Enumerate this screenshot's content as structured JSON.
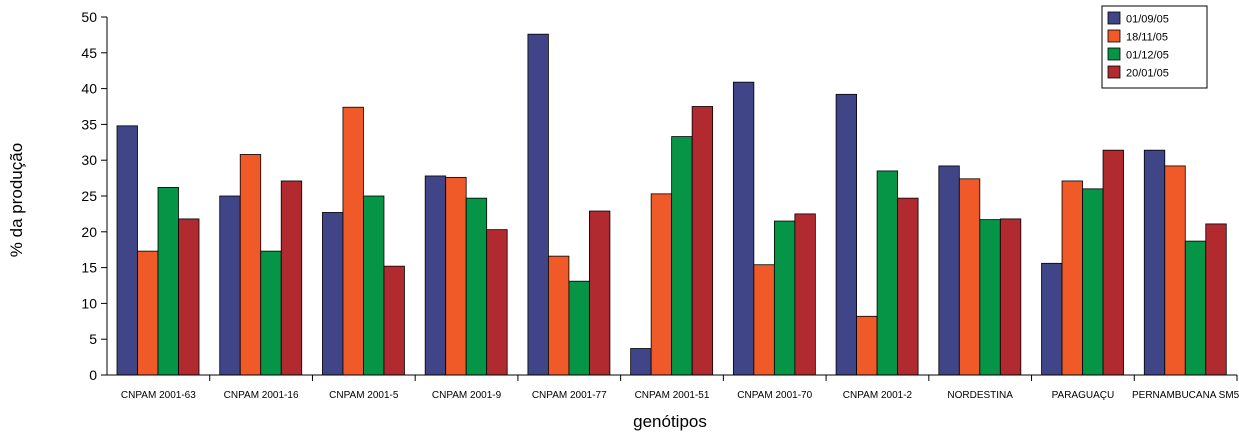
{
  "chart_data": {
    "type": "bar",
    "title": "",
    "xlabel": "genótipos",
    "ylabel": "% da produção",
    "ylim": [
      0,
      50
    ],
    "yticks": [
      0,
      5,
      10,
      15,
      20,
      25,
      30,
      35,
      40,
      45,
      50
    ],
    "grid": false,
    "legend_position": "top-right",
    "categories": [
      "CNPAM 2001-63",
      "CNPAM 2001-16",
      "CNPAM 2001-5",
      "CNPAM 2001-9",
      "CNPAM 2001-77",
      "CNPAM 2001-51",
      "CNPAM 2001-70",
      "CNPAM 2001-2",
      "NORDESTINA",
      "PARAGUAÇU",
      "PERNAMBUCANA SM5"
    ],
    "series": [
      {
        "name": "01/09/05",
        "color": "#3f4587",
        "values": [
          34.8,
          25.0,
          22.7,
          27.8,
          47.6,
          3.7,
          40.9,
          39.2,
          29.2,
          15.6,
          31.4
        ]
      },
      {
        "name": "18/11/05",
        "color": "#f05a28",
        "values": [
          17.3,
          30.8,
          37.4,
          27.6,
          16.6,
          25.3,
          15.4,
          8.2,
          27.4,
          27.1,
          29.2
        ]
      },
      {
        "name": "01/12/05",
        "color": "#069447",
        "values": [
          26.2,
          17.3,
          25.0,
          24.7,
          13.1,
          33.3,
          21.5,
          28.5,
          21.7,
          26.0,
          18.7
        ]
      },
      {
        "name": "20/01/05",
        "color": "#b02a30",
        "values": [
          21.8,
          27.1,
          15.2,
          20.3,
          22.9,
          37.5,
          22.5,
          24.7,
          21.8,
          31.4,
          21.1
        ]
      }
    ]
  }
}
